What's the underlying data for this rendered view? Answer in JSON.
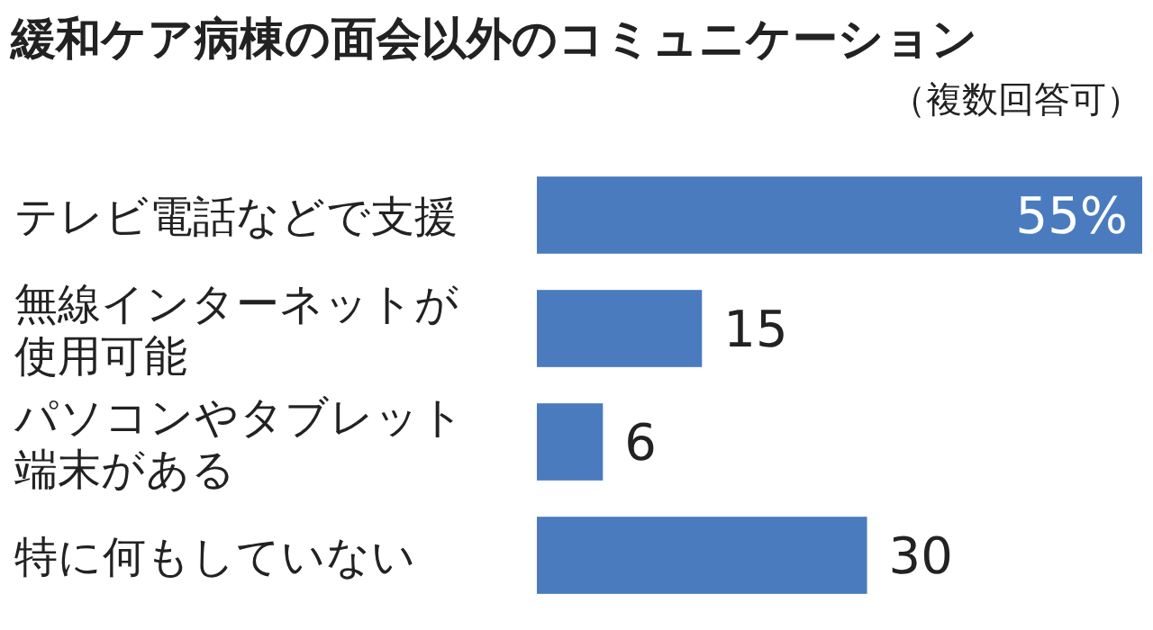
{
  "chart_data": {
    "type": "bar",
    "orientation": "horizontal",
    "title": "緩和ケア病棟の面会以外のコミュニケーション",
    "subtitle": "（複数回答可）",
    "categories": [
      "テレビ電話などで支援",
      "無線インターネットが使用可能",
      "パソコンやタブレット端末がある",
      "特に何もしていない"
    ],
    "values": [
      55,
      15,
      6,
      30
    ],
    "color": "#4a7bbf",
    "value_labels": [
      "55%",
      "15",
      "6",
      "30"
    ]
  }
}
